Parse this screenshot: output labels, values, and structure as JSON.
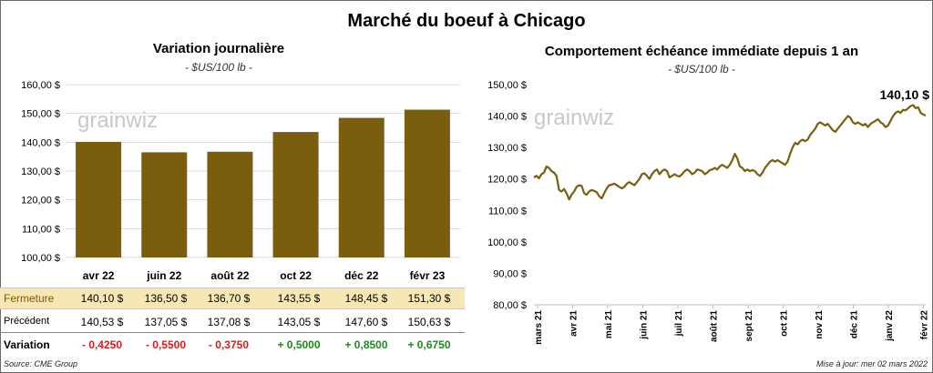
{
  "title": "Marché du boeuf à Chicago",
  "left_panel": {
    "title": "Variation  journalière",
    "unit": "- $US/100 lb -"
  },
  "right_panel": {
    "title": "Comportement  échéance immédiate depuis 1 an",
    "unit": "- $US/100 lb -"
  },
  "watermark": "grainwiz",
  "chart_data": [
    {
      "type": "bar",
      "categories": [
        "avr 22",
        "juin 22",
        "août 22",
        "oct 22",
        "déc 22",
        "févr 23"
      ],
      "values": [
        140.1,
        136.5,
        136.7,
        143.55,
        148.45,
        151.3
      ],
      "ylim": [
        100,
        160
      ],
      "yticks": [
        "100,00 $",
        "110,00 $",
        "120,00 $",
        "130,00 $",
        "140,00 $",
        "150,00 $",
        "160,00 $"
      ],
      "color": "#7a5e0f"
    },
    {
      "type": "line",
      "x_labels": [
        "mars 21",
        "avr 21",
        "mai 21",
        "juin 21",
        "juil 21",
        "août 21",
        "sept 21",
        "oct 21",
        "nov 21",
        "déc 21",
        "janv 22",
        "févr 22"
      ],
      "ylim": [
        80,
        150
      ],
      "yticks": [
        "80,00 $",
        "90,00 $",
        "100,00 $",
        "110,00 $",
        "120,00 $",
        "130,00 $",
        "140,00 $",
        "150,00 $"
      ],
      "values": [
        120.5,
        121,
        120.2,
        121.5,
        122,
        124,
        123.5,
        122.5,
        122,
        121,
        116.5,
        116,
        116.8,
        115.5,
        113.5,
        115,
        116,
        117.5,
        118,
        117.8,
        115.5,
        115,
        116,
        116.5,
        116.2,
        115.8,
        114.5,
        113.8,
        115.5,
        117,
        118,
        118.2,
        118.5,
        118,
        117.5,
        117,
        117.5,
        118.5,
        119,
        118.5,
        118,
        119,
        120,
        121.5,
        121.8,
        121,
        120,
        121.5,
        122.5,
        123,
        121.5,
        122.5,
        123,
        122.5,
        120.5,
        121,
        121.5,
        121,
        120.8,
        121.5,
        122.5,
        123,
        122.5,
        121.5,
        122,
        123,
        122.8,
        122.5,
        121.5,
        122,
        122.8,
        123,
        123.5,
        123,
        124,
        124.5,
        124,
        123.5,
        124.5,
        126,
        128,
        126.5,
        124,
        123.5,
        122.5,
        123,
        122.5,
        122.8,
        122.5,
        121.5,
        121,
        122,
        123.5,
        124.5,
        125.5,
        126,
        125.5,
        126,
        125.5,
        125,
        124.5,
        125.5,
        128,
        130,
        131.5,
        131,
        132,
        132.5,
        132,
        132.5,
        134,
        135,
        136,
        137.5,
        138,
        137.5,
        137,
        137.5,
        136.5,
        135.5,
        135,
        136,
        137,
        138,
        139,
        140,
        139.5,
        138,
        137.5,
        138,
        137.5,
        137,
        137.5,
        136.5,
        137.5,
        138,
        138.5,
        139,
        138,
        137.5,
        136.5,
        137,
        138.5,
        140,
        141,
        141.5,
        141,
        142,
        141.8,
        142.5,
        143.2,
        143.5,
        142.5,
        142.8,
        141,
        140.5,
        140.1
      ],
      "last_label": "140,10 $",
      "color": "#7a5e0f"
    }
  ],
  "table": {
    "rows": [
      {
        "label": "Fermeture",
        "values": [
          "140,10  $",
          "136,50  $",
          "136,70  $",
          "143,55  $",
          "148,45  $",
          "151,30  $"
        ]
      },
      {
        "label": "Précédent",
        "values": [
          "140,53  $",
          "137,05  $",
          "137,08  $",
          "143,05  $",
          "147,60  $",
          "150,63  $"
        ]
      },
      {
        "label": "Variation",
        "values": [
          "- 0,4250",
          "- 0,5500",
          "- 0,3750",
          "+ 0,5000",
          "+ 0,8500",
          "+ 0,6750"
        ]
      }
    ]
  },
  "footer": {
    "source": "Source: CME Group",
    "updated": "Mise à jour: mer 02 mars 2022"
  },
  "colors": {
    "bar": "#7a5e0f",
    "line": "#7a5e0f",
    "close_row_bg": "#f7e7b5",
    "negative": "#e0191c",
    "positive": "#1c8a1c"
  }
}
